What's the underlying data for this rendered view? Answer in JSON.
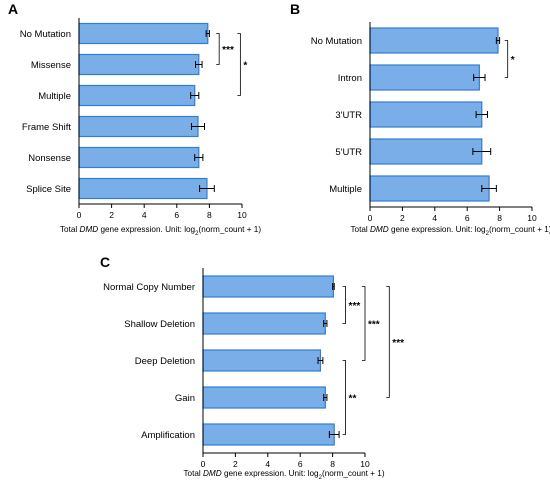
{
  "chart_data": [
    {
      "type": "bar",
      "orientation": "horizontal",
      "panel": "A",
      "categories": [
        "No Mutation",
        "Missense",
        "Multiple",
        "Frame Shift",
        "Nonsense",
        "Splice Site"
      ],
      "values": [
        7.9,
        7.35,
        7.1,
        7.3,
        7.35,
        7.85
      ],
      "errors": [
        0.1,
        0.2,
        0.25,
        0.4,
        0.25,
        0.45
      ],
      "xlim": [
        0,
        10
      ],
      "xticks": [
        "0",
        "2",
        "4",
        "6",
        "8",
        "10"
      ],
      "xlabel_parts": [
        "Total ",
        "DMD",
        " gene expression. Unit: log",
        "2",
        "(norm_count + 1)"
      ],
      "significance": [
        {
          "from": 0,
          "to": 1,
          "label": "***",
          "x_value": 8.6
        },
        {
          "from": 0,
          "to": 2,
          "label": "*",
          "x_value": 9.9
        }
      ]
    },
    {
      "type": "bar",
      "orientation": "horizontal",
      "panel": "B",
      "categories": [
        "No Mutation",
        "Intron",
        "3'UTR",
        "5'UTR",
        "Multiple"
      ],
      "values": [
        7.9,
        6.75,
        6.9,
        6.9,
        7.35
      ],
      "errors": [
        0.1,
        0.35,
        0.35,
        0.55,
        0.45
      ],
      "xlim": [
        0,
        10
      ],
      "xticks": [
        "0",
        "2",
        "4",
        "6",
        "8",
        "10"
      ],
      "xlabel_parts": [
        "Total ",
        "DMD",
        " gene expression. Unit: log",
        "2",
        "(norm_count + 1)"
      ],
      "significance": [
        {
          "from": 0,
          "to": 1,
          "label": "*",
          "x_value": 8.5
        }
      ]
    },
    {
      "type": "bar",
      "orientation": "horizontal",
      "panel": "C",
      "categories": [
        "Normal Copy Number",
        "Shallow Deletion",
        "Deep Deletion",
        "Gain",
        "Amplification"
      ],
      "values": [
        8.05,
        7.55,
        7.25,
        7.55,
        8.1
      ],
      "errors": [
        0.05,
        0.1,
        0.15,
        0.1,
        0.3
      ],
      "xlim": [
        0,
        10
      ],
      "xticks": [
        "0",
        "2",
        "4",
        "6",
        "8",
        "10"
      ],
      "xlabel_parts": [
        "Total ",
        "DMD",
        " gene expression. Unit: log",
        "2",
        "(norm_count + 1)"
      ],
      "significance": [
        {
          "from": 0,
          "to": 1,
          "label": "***",
          "x_value": 8.8
        },
        {
          "from": 0,
          "to": 2,
          "label": "***",
          "x_value": 10.0
        },
        {
          "from": 0,
          "to": 3,
          "label": "***",
          "x_value": 11.5
        },
        {
          "from": 2,
          "to": 4,
          "label": "**",
          "x_value": 8.8
        }
      ]
    }
  ]
}
